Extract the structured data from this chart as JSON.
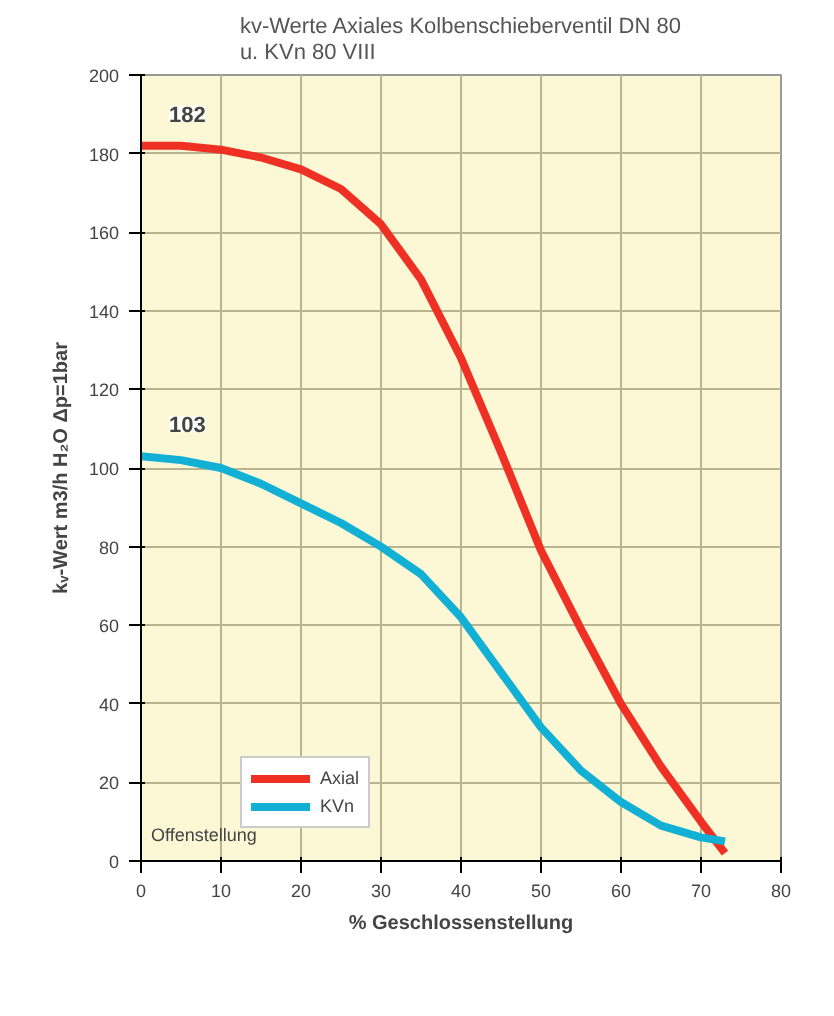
{
  "chart_data": {
    "type": "line",
    "title": "kv-Werte Axiales Kolbenschieberventil DN 80\nu. KVn 80 VIII",
    "xlabel": "% Geschlossenstellung",
    "ylabel": "kᵥ-Wert m3/h H₂O Δp=1bar",
    "x": [
      0,
      5,
      10,
      15,
      20,
      25,
      30,
      35,
      40,
      45,
      50,
      55,
      60,
      65,
      70,
      73
    ],
    "series": [
      {
        "name": "Axial",
        "color": "#ee3124",
        "values": [
          182,
          182,
          181,
          179,
          176,
          171,
          162,
          148,
          128,
          104,
          79,
          59,
          40,
          24,
          10,
          2
        ]
      },
      {
        "name": "KVn",
        "color": "#12b0d4",
        "values": [
          103,
          102,
          100,
          96,
          91,
          86,
          80,
          73,
          62,
          48,
          34,
          23,
          15,
          9,
          6,
          5
        ]
      }
    ],
    "xlim": [
      0,
      80
    ],
    "xticks": [
      0,
      10,
      20,
      30,
      40,
      50,
      60,
      70,
      80
    ],
    "ylim": [
      0,
      200
    ],
    "yticks": [
      0,
      20,
      40,
      60,
      80,
      100,
      120,
      140,
      160,
      180,
      200
    ],
    "grid": true,
    "legend": "bottom",
    "marker": "none",
    "line_style": "solid",
    "annotations": [
      {
        "text": "182",
        "x": 0,
        "y": 182
      },
      {
        "text": "103",
        "x": 0,
        "y": 103
      },
      "Offenstellung"
    ]
  }
}
